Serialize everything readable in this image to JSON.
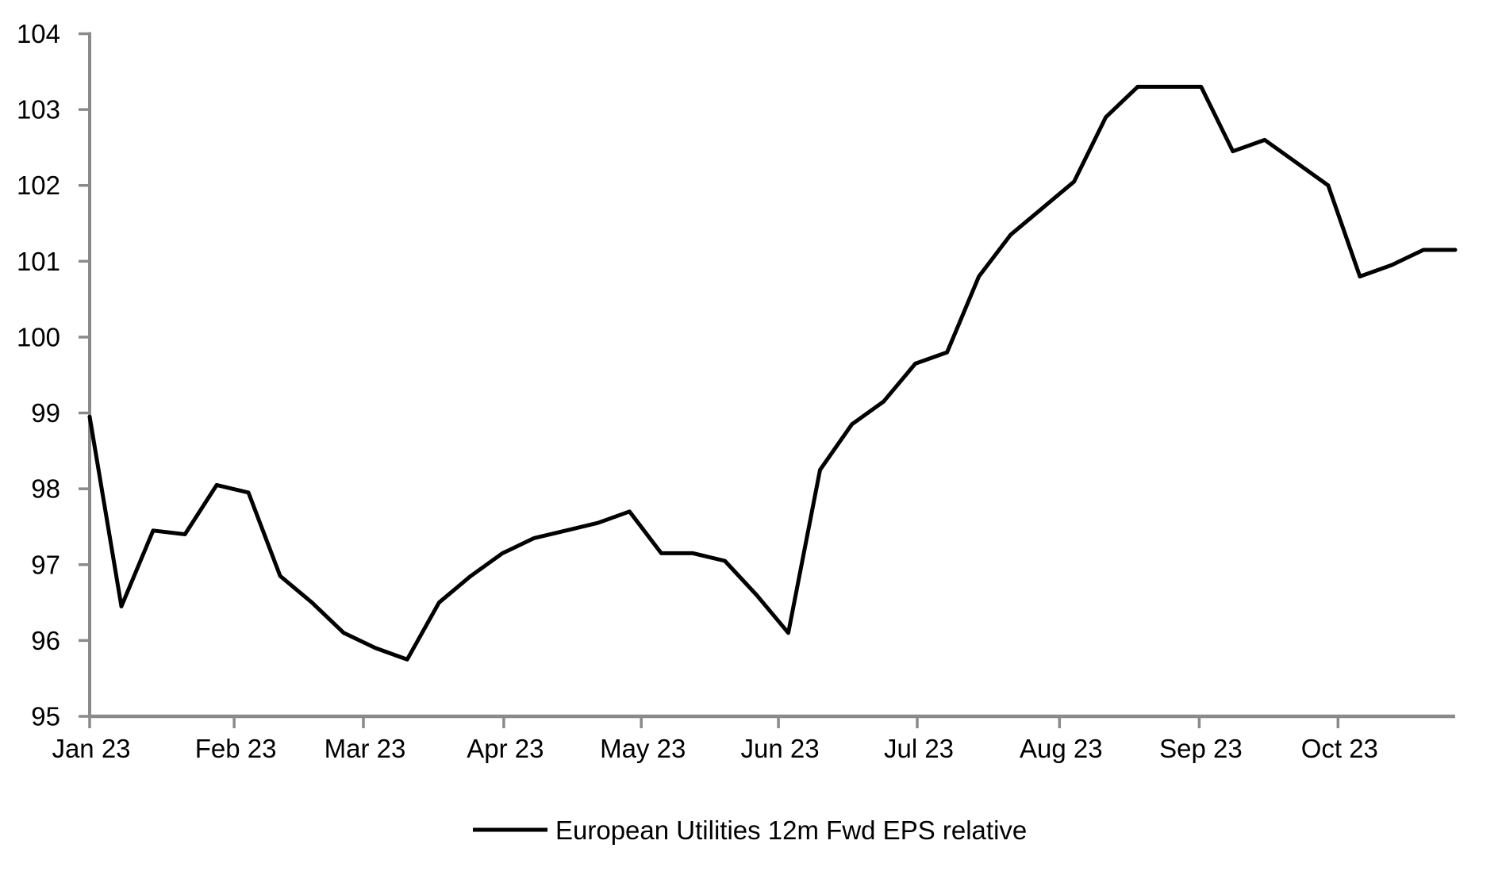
{
  "chart_data": {
    "type": "line",
    "title": "",
    "grid": "off",
    "axis_color": "#8a8a8a",
    "text_color": "#000000",
    "legend": {
      "label": "European Utilities 12m Fwd EPS relative",
      "position": "bottom-center",
      "swatch": "black-line"
    },
    "y": {
      "ylim": [
        95,
        104
      ],
      "ticks": [
        95,
        96,
        97,
        98,
        99,
        100,
        101,
        102,
        103,
        104
      ]
    },
    "x": {
      "unit": "weeks",
      "n_points": 44,
      "month_ticks": [
        {
          "label": "Jan 23",
          "week": 0
        },
        {
          "label": "Feb 23",
          "week": 4.55
        },
        {
          "label": "Mar 23",
          "week": 8.62
        },
        {
          "label": "Apr 23",
          "week": 13.04
        },
        {
          "label": "May 23",
          "week": 17.37
        },
        {
          "label": "Jun 23",
          "week": 21.69
        },
        {
          "label": "Jul 23",
          "week": 26.06
        },
        {
          "label": "Aug 23",
          "week": 30.54
        },
        {
          "label": "Sep 23",
          "week": 34.94
        },
        {
          "label": "Oct 23",
          "week": 39.31
        }
      ]
    },
    "series": [
      {
        "name": "European Utilities 12m Fwd EPS relative",
        "color": "#000000",
        "values": [
          98.95,
          96.45,
          97.45,
          97.4,
          98.05,
          97.95,
          96.85,
          96.5,
          96.1,
          95.9,
          95.75,
          96.5,
          96.85,
          97.15,
          97.35,
          97.45,
          97.55,
          97.7,
          97.15,
          97.15,
          97.05,
          96.6,
          96.1,
          98.25,
          98.85,
          99.15,
          99.65,
          99.8,
          100.8,
          101.35,
          101.7,
          102.05,
          102.9,
          103.3,
          103.3,
          103.3,
          102.45,
          102.6,
          102.3,
          102.0,
          100.8,
          100.95,
          101.15,
          101.15
        ]
      }
    ]
  }
}
